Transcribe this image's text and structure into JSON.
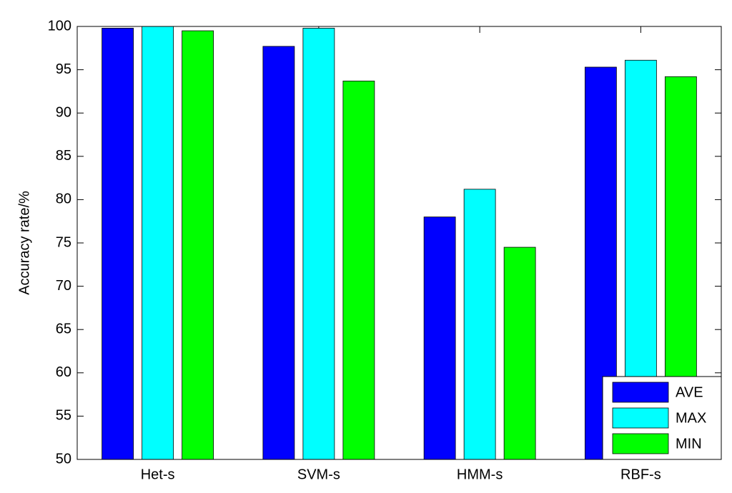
{
  "chart_data": {
    "type": "bar",
    "ylabel": "Accuracy rate/%",
    "categories": [
      "Het-s",
      "SVM-s",
      "HMM-s",
      "RBF-s"
    ],
    "series": [
      {
        "name": "AVE",
        "color": "#0000ff",
        "values": [
          99.8,
          97.7,
          78.0,
          95.3
        ]
      },
      {
        "name": "MAX",
        "color": "#00ffff",
        "values": [
          100,
          99.8,
          81.2,
          96.1
        ]
      },
      {
        "name": "MIN",
        "color": "#00ff00",
        "values": [
          99.5,
          93.7,
          74.5,
          94.2
        ]
      }
    ],
    "ylim": [
      50,
      100
    ],
    "yticks": [
      50,
      55,
      60,
      65,
      70,
      75,
      80,
      85,
      90,
      95,
      100
    ],
    "grid": false,
    "legend": "lower right"
  }
}
